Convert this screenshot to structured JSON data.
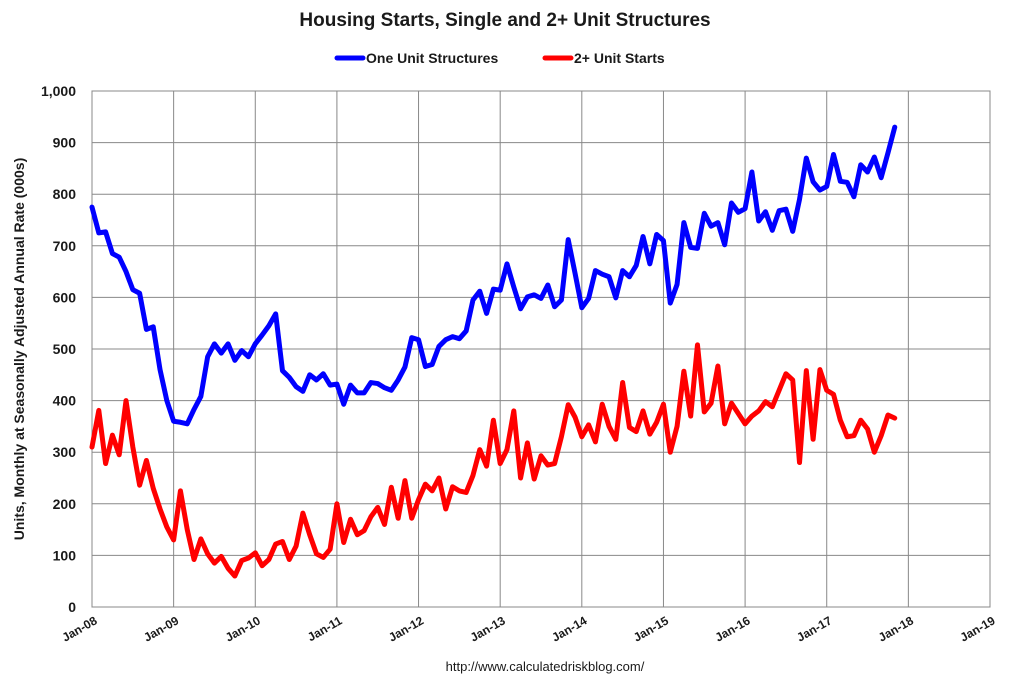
{
  "chart_data": {
    "type": "line",
    "title": "Housing Starts, Single and 2+ Unit Structures",
    "ylabel": "Units, Monthly at Seasonally Adjusted Annual Rate (000s)",
    "xlabel": "",
    "ylim": [
      0,
      1000
    ],
    "yticks": [
      0,
      100,
      200,
      300,
      400,
      500,
      600,
      700,
      800,
      900,
      1000
    ],
    "ytick_labels": [
      "0",
      "100",
      "200",
      "300",
      "400",
      "500",
      "600",
      "700",
      "800",
      "900",
      "1,000"
    ],
    "xticks": [
      "Jan-08",
      "Jan-09",
      "Jan-10",
      "Jan-11",
      "Jan-12",
      "Jan-13",
      "Jan-14",
      "Jan-15",
      "Jan-16",
      "Jan-17",
      "Jan-18",
      "Jan-19"
    ],
    "x_start": "Jan-08",
    "x_end": "Jan-19",
    "grid": true,
    "legend_position": "top-center",
    "series": [
      {
        "name": "One Unit Structures",
        "color": "#0000ff",
        "start": "Jan-08",
        "values": [
          775,
          725,
          727,
          685,
          678,
          650,
          615,
          608,
          538,
          543,
          460,
          400,
          360,
          358,
          355,
          383,
          408,
          485,
          510,
          492,
          510,
          478,
          497,
          485,
          510,
          527,
          545,
          568,
          458,
          445,
          427,
          418,
          450,
          440,
          452,
          430,
          432,
          393,
          430,
          415,
          415,
          435,
          433,
          425,
          420,
          440,
          465,
          522,
          518,
          466,
          470,
          505,
          518,
          524,
          520,
          535,
          595,
          612,
          569,
          616,
          614,
          665,
          620,
          578,
          601,
          605,
          598,
          624,
          582,
          595,
          712,
          647,
          580,
          598,
          652,
          645,
          640,
          599,
          652,
          640,
          662,
          718,
          665,
          722,
          710,
          589,
          625,
          745,
          697,
          695,
          763,
          738,
          745,
          702,
          783,
          765,
          772,
          843,
          748,
          766,
          730,
          768,
          771,
          728,
          790,
          870,
          824,
          808,
          815,
          877,
          825,
          823,
          795,
          857,
          843,
          872,
          832,
          880,
          930
        ]
      },
      {
        "name": "2+ Unit Starts",
        "color": "#ff0000",
        "start": "Jan-08",
        "values": [
          310,
          381,
          278,
          333,
          295,
          400,
          310,
          236,
          284,
          230,
          190,
          155,
          130,
          225,
          150,
          92,
          132,
          103,
          85,
          98,
          75,
          60,
          90,
          95,
          105,
          80,
          92,
          122,
          127,
          92,
          118,
          182,
          140,
          103,
          96,
          112,
          200,
          125,
          170,
          140,
          148,
          175,
          193,
          160,
          232,
          172,
          245,
          172,
          208,
          238,
          225,
          250,
          190,
          233,
          225,
          222,
          255,
          305,
          273,
          362,
          278,
          305,
          380,
          250,
          318,
          248,
          293,
          275,
          278,
          330,
          392,
          368,
          330,
          353,
          320,
          393,
          350,
          325,
          435,
          348,
          340,
          380,
          335,
          358,
          393,
          300,
          350,
          457,
          370,
          508,
          378,
          395,
          467,
          355,
          395,
          375,
          355,
          370,
          380,
          398,
          388,
          420,
          452,
          440,
          280,
          458,
          325,
          460,
          420,
          412,
          362,
          330,
          332,
          362,
          345,
          300,
          332,
          372,
          366
        ]
      }
    ]
  },
  "footer": {
    "source": "http://www.calculatedriskblog.com/"
  }
}
